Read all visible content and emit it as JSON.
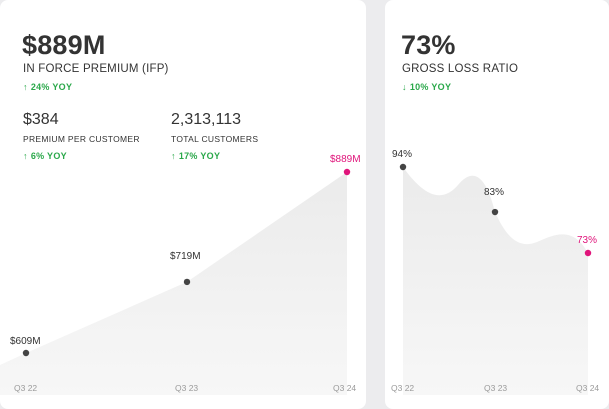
{
  "colors": {
    "accent": "#e0157b",
    "positive": "#2aa84a",
    "area_fill": "#ededed",
    "point": "#444444"
  },
  "ifp": {
    "value": "$889M",
    "label": "IN FORCE PREMIUM (IFP)",
    "change_arrow": "↑",
    "change": "24% YOY",
    "ppc": {
      "value": "$384",
      "label": "PREMIUM PER CUSTOMER",
      "change_arrow": "↑",
      "change": "6% YOY"
    },
    "customers": {
      "value": "2,313,113",
      "label": "TOTAL CUSTOMERS",
      "change_arrow": "↑",
      "change": "17% YOY"
    }
  },
  "glr": {
    "value": "73%",
    "label": "GROSS LOSS RATIO",
    "change_arrow": "↓",
    "change": "10% YOY"
  },
  "chart_data": [
    {
      "type": "area",
      "x": [
        "Q3 22",
        "Q3 23",
        "Q3 24"
      ],
      "series": [
        {
          "values": [
            609,
            719,
            889
          ],
          "unit": "$M"
        }
      ],
      "point_labels": [
        "$609M",
        "$719M",
        "$889M"
      ],
      "highlight_last": true
    },
    {
      "type": "area",
      "x": [
        "Q3 22",
        "Q3 23",
        "Q3 24"
      ],
      "series": [
        {
          "values": [
            94,
            83,
            73
          ],
          "unit": "%"
        }
      ],
      "point_labels": [
        "94%",
        "83%",
        "73%"
      ],
      "highlight_last": true
    }
  ]
}
